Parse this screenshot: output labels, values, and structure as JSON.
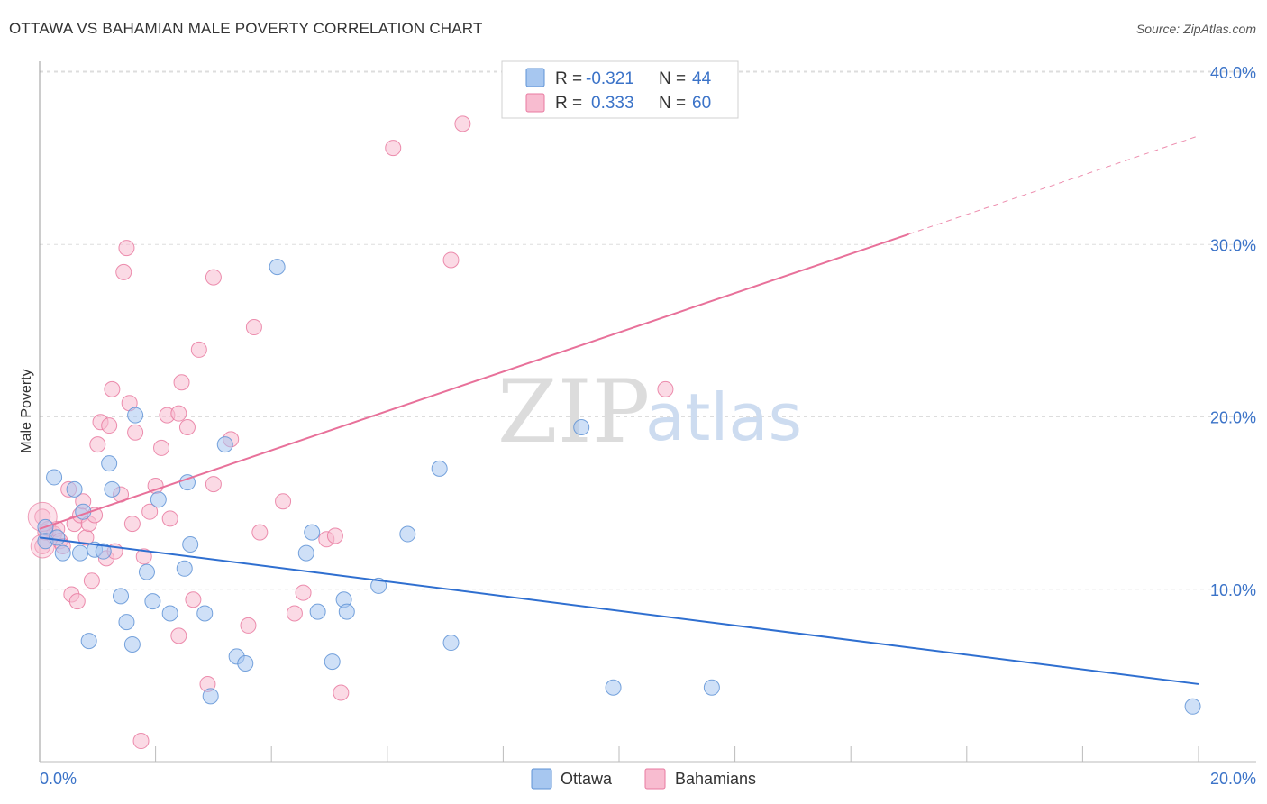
{
  "header": {
    "title": "OTTAWA VS BAHAMIAN MALE POVERTY CORRELATION CHART",
    "source": "Source: ZipAtlas.com"
  },
  "watermark": {
    "zip": "ZIP",
    "atlas": "atlas"
  },
  "legend": {
    "r_label": "R =",
    "n_label": "N =",
    "rows": [
      {
        "r": "-0.321",
        "n": "44",
        "color": "#a7c7f0"
      },
      {
        "r": "0.333",
        "n": "60",
        "color": "#f8bcd0"
      }
    ]
  },
  "bottom_legend": [
    {
      "label": "Ottawa",
      "color": "#a7c7f0"
    },
    {
      "label": "Bahamians",
      "color": "#f8bcd0"
    }
  ],
  "colors": {
    "ottawa_fill": "#a7c7f0",
    "ottawa_stroke": "#5f93d6",
    "ottawa_line": "#2f6fd0",
    "bahamian_fill": "#f8bcd0",
    "bahamian_stroke": "#e97aa0",
    "bahamian_line": "#e8719a",
    "tick_text": "#3b73c8"
  },
  "chart_data": {
    "type": "scatter",
    "title": "OTTAWA VS BAHAMIAN MALE POVERTY CORRELATION CHART",
    "xlabel": "",
    "ylabel": "Male Poverty",
    "xlim": [
      0,
      20
    ],
    "ylim": [
      0,
      40
    ],
    "x_tick_labels": [
      "0.0%",
      "20.0%"
    ],
    "y_ticks": [
      10,
      20,
      30,
      40
    ],
    "y_tick_labels": [
      "10.0%",
      "20.0%",
      "30.0%",
      "40.0%"
    ],
    "grid": true,
    "legend_position": "top-center",
    "series": [
      {
        "name": "Ottawa",
        "r": -0.321,
        "n": 44,
        "trend": {
          "x": [
            0,
            20
          ],
          "y": [
            13.0,
            4.5
          ]
        },
        "points": [
          [
            0.1,
            13.6
          ],
          [
            0.1,
            12.8
          ],
          [
            0.25,
            16.5
          ],
          [
            0.3,
            13.0
          ],
          [
            0.4,
            12.1
          ],
          [
            0.6,
            15.8
          ],
          [
            0.7,
            12.1
          ],
          [
            0.75,
            14.5
          ],
          [
            0.85,
            7.0
          ],
          [
            0.95,
            12.3
          ],
          [
            1.1,
            12.2
          ],
          [
            1.2,
            17.3
          ],
          [
            1.25,
            15.8
          ],
          [
            1.4,
            9.6
          ],
          [
            1.5,
            8.1
          ],
          [
            1.6,
            6.8
          ],
          [
            1.65,
            20.1
          ],
          [
            1.85,
            11.0
          ],
          [
            1.95,
            9.3
          ],
          [
            2.05,
            15.2
          ],
          [
            2.25,
            8.6
          ],
          [
            2.5,
            11.2
          ],
          [
            2.55,
            16.2
          ],
          [
            2.6,
            12.6
          ],
          [
            2.85,
            8.6
          ],
          [
            2.95,
            3.8
          ],
          [
            3.2,
            18.4
          ],
          [
            3.4,
            6.1
          ],
          [
            3.55,
            5.7
          ],
          [
            4.1,
            28.7
          ],
          [
            4.6,
            12.1
          ],
          [
            4.7,
            13.3
          ],
          [
            4.8,
            8.7
          ],
          [
            5.05,
            5.8
          ],
          [
            5.25,
            9.4
          ],
          [
            5.3,
            8.7
          ],
          [
            5.85,
            10.2
          ],
          [
            6.35,
            13.2
          ],
          [
            6.9,
            17.0
          ],
          [
            7.1,
            6.9
          ],
          [
            9.35,
            19.4
          ],
          [
            9.9,
            4.3
          ],
          [
            11.6,
            4.3
          ],
          [
            19.9,
            3.2
          ]
        ]
      },
      {
        "name": "Bahamians",
        "r": 0.333,
        "n": 60,
        "trend": {
          "x": [
            0,
            15
          ],
          "y": [
            13.5,
            30.6
          ]
        },
        "trend_dashed": {
          "x": [
            15,
            20
          ],
          "y": [
            30.6,
            36.3
          ]
        },
        "points": [
          [
            0.05,
            14.2
          ],
          [
            0.05,
            12.5
          ],
          [
            0.15,
            13.5
          ],
          [
            0.25,
            13.2
          ],
          [
            0.3,
            13.5
          ],
          [
            0.35,
            12.8
          ],
          [
            0.4,
            12.5
          ],
          [
            0.5,
            15.8
          ],
          [
            0.55,
            9.7
          ],
          [
            0.6,
            13.8
          ],
          [
            0.65,
            9.3
          ],
          [
            0.7,
            14.3
          ],
          [
            0.75,
            15.1
          ],
          [
            0.8,
            13.0
          ],
          [
            0.85,
            13.8
          ],
          [
            0.9,
            10.5
          ],
          [
            0.95,
            14.3
          ],
          [
            1.0,
            18.4
          ],
          [
            1.05,
            19.7
          ],
          [
            1.15,
            11.8
          ],
          [
            1.2,
            19.5
          ],
          [
            1.25,
            21.6
          ],
          [
            1.3,
            12.2
          ],
          [
            1.4,
            15.5
          ],
          [
            1.45,
            28.4
          ],
          [
            1.5,
            29.8
          ],
          [
            1.55,
            20.8
          ],
          [
            1.6,
            13.8
          ],
          [
            1.65,
            19.1
          ],
          [
            1.75,
            1.2
          ],
          [
            1.8,
            11.9
          ],
          [
            1.9,
            14.5
          ],
          [
            2.0,
            16.0
          ],
          [
            2.1,
            18.2
          ],
          [
            2.2,
            20.1
          ],
          [
            2.25,
            14.1
          ],
          [
            2.4,
            20.2
          ],
          [
            2.4,
            7.3
          ],
          [
            2.45,
            22.0
          ],
          [
            2.55,
            19.4
          ],
          [
            2.65,
            9.4
          ],
          [
            2.75,
            23.9
          ],
          [
            2.9,
            4.5
          ],
          [
            3.0,
            16.1
          ],
          [
            3.0,
            28.1
          ],
          [
            3.3,
            18.7
          ],
          [
            3.6,
            7.9
          ],
          [
            3.7,
            25.2
          ],
          [
            3.8,
            13.3
          ],
          [
            4.2,
            15.1
          ],
          [
            4.4,
            8.6
          ],
          [
            4.55,
            9.8
          ],
          [
            4.95,
            12.9
          ],
          [
            5.1,
            13.1
          ],
          [
            5.2,
            4.0
          ],
          [
            6.1,
            35.6
          ],
          [
            7.1,
            29.1
          ],
          [
            7.3,
            37.0
          ],
          [
            10.8,
            21.6
          ],
          [
            0.1,
            13.3
          ]
        ]
      }
    ]
  }
}
